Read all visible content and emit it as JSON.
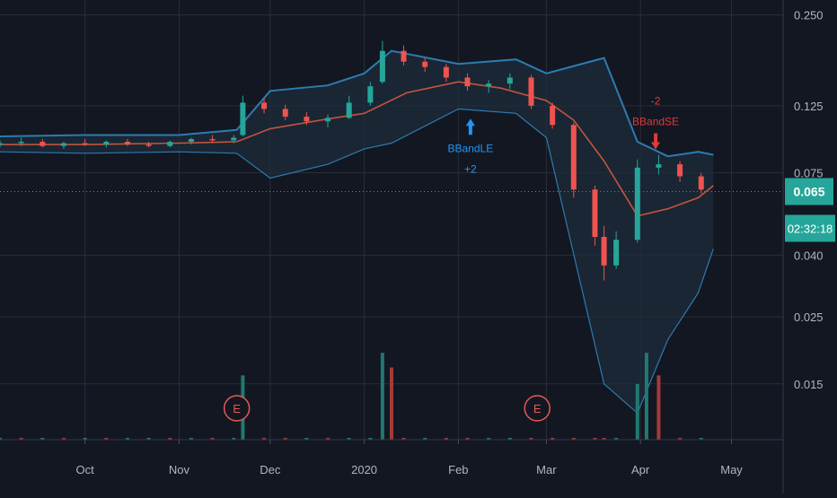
{
  "chart_data": {
    "type": "candlestick",
    "y_scale": "log",
    "y_ticks": [
      "0.250",
      "0.125",
      "0.075",
      "0.040",
      "0.025",
      "0.015"
    ],
    "y_tick_values": [
      0.25,
      0.125,
      0.075,
      0.04,
      0.025,
      0.015
    ],
    "y_range": [
      0.0098,
      0.28
    ],
    "x_ticks": [
      "Oct",
      "Nov",
      "Dec",
      "2020",
      "Feb",
      "Mar",
      "Apr",
      "May"
    ],
    "x_tick_dates": [
      "2019-10-01",
      "2019-11-01",
      "2019-12-01",
      "2020-01-01",
      "2020-02-01",
      "2020-03-01",
      "2020-04-01",
      "2020-05-01"
    ],
    "x_range": [
      "2019-09-03",
      "2020-05-18"
    ],
    "last_price": {
      "label": "0.065",
      "value": 0.065
    },
    "countdown": "02:32:18",
    "bb_middle": [
      [
        "2019-09-03",
        0.093
      ],
      [
        "2019-10-01",
        0.093
      ],
      [
        "2019-11-01",
        0.094
      ],
      [
        "2019-11-20",
        0.095
      ],
      [
        "2019-12-01",
        0.105
      ],
      [
        "2019-12-20",
        0.113
      ],
      [
        "2020-01-01",
        0.118
      ],
      [
        "2020-01-15",
        0.138
      ],
      [
        "2020-02-01",
        0.15
      ],
      [
        "2020-02-15",
        0.143
      ],
      [
        "2020-03-01",
        0.13
      ],
      [
        "2020-03-10",
        0.112
      ],
      [
        "2020-03-20",
        0.082
      ],
      [
        "2020-03-31",
        0.054
      ],
      [
        "2020-04-10",
        0.057
      ],
      [
        "2020-04-20",
        0.062
      ],
      [
        "2020-04-25",
        0.068
      ]
    ],
    "bb_upper": [
      [
        "2019-09-03",
        0.099
      ],
      [
        "2019-10-01",
        0.1
      ],
      [
        "2019-11-01",
        0.1
      ],
      [
        "2019-11-20",
        0.104
      ],
      [
        "2019-12-01",
        0.14
      ],
      [
        "2019-12-20",
        0.146
      ],
      [
        "2020-01-01",
        0.16
      ],
      [
        "2020-01-10",
        0.19
      ],
      [
        "2020-02-01",
        0.172
      ],
      [
        "2020-02-20",
        0.178
      ],
      [
        "2020-03-01",
        0.16
      ],
      [
        "2020-03-20",
        0.18
      ],
      [
        "2020-03-31",
        0.095
      ],
      [
        "2020-04-10",
        0.085
      ],
      [
        "2020-04-20",
        0.088
      ],
      [
        "2020-04-25",
        0.086
      ]
    ],
    "bb_lower": [
      [
        "2019-09-03",
        0.088
      ],
      [
        "2019-10-01",
        0.087
      ],
      [
        "2019-11-01",
        0.088
      ],
      [
        "2019-11-20",
        0.087
      ],
      [
        "2019-12-01",
        0.072
      ],
      [
        "2019-12-20",
        0.08
      ],
      [
        "2020-01-01",
        0.09
      ],
      [
        "2020-01-10",
        0.094
      ],
      [
        "2020-02-01",
        0.122
      ],
      [
        "2020-02-20",
        0.118
      ],
      [
        "2020-03-01",
        0.098
      ],
      [
        "2020-03-20",
        0.015
      ],
      [
        "2020-03-31",
        0.012
      ],
      [
        "2020-04-10",
        0.021
      ],
      [
        "2020-04-20",
        0.03
      ],
      [
        "2020-04-25",
        0.042
      ]
    ],
    "candles": [
      [
        "2019-09-03",
        0.093,
        0.096,
        0.091,
        0.094
      ],
      [
        "2019-09-10",
        0.094,
        0.098,
        0.092,
        0.095
      ],
      [
        "2019-09-17",
        0.095,
        0.097,
        0.091,
        0.092
      ],
      [
        "2019-09-24",
        0.092,
        0.095,
        0.09,
        0.094
      ],
      [
        "2019-10-01",
        0.094,
        0.097,
        0.092,
        0.093
      ],
      [
        "2019-10-08",
        0.093,
        0.096,
        0.091,
        0.095
      ],
      [
        "2019-10-15",
        0.095,
        0.097,
        0.092,
        0.093
      ],
      [
        "2019-10-22",
        0.093,
        0.095,
        0.091,
        0.092
      ],
      [
        "2019-10-29",
        0.092,
        0.096,
        0.091,
        0.095
      ],
      [
        "2019-11-05",
        0.095,
        0.098,
        0.093,
        0.097
      ],
      [
        "2019-11-12",
        0.097,
        0.1,
        0.094,
        0.096
      ],
      [
        "2019-11-19",
        0.096,
        0.1,
        0.094,
        0.098
      ],
      [
        "2019-11-22",
        0.1,
        0.135,
        0.099,
        0.128
      ],
      [
        "2019-11-29",
        0.128,
        0.133,
        0.118,
        0.122
      ],
      [
        "2019-12-06",
        0.122,
        0.126,
        0.112,
        0.115
      ],
      [
        "2019-12-13",
        0.115,
        0.119,
        0.108,
        0.111
      ],
      [
        "2019-12-20",
        0.111,
        0.117,
        0.106,
        0.114
      ],
      [
        "2019-12-27",
        0.114,
        0.135,
        0.113,
        0.128
      ],
      [
        "2020-01-03",
        0.128,
        0.15,
        0.125,
        0.145
      ],
      [
        "2020-01-07",
        0.15,
        0.205,
        0.148,
        0.19
      ],
      [
        "2020-01-14",
        0.19,
        0.198,
        0.17,
        0.175
      ],
      [
        "2020-01-21",
        0.175,
        0.18,
        0.162,
        0.168
      ],
      [
        "2020-01-28",
        0.168,
        0.172,
        0.15,
        0.155
      ],
      [
        "2020-02-04",
        0.155,
        0.16,
        0.14,
        0.145
      ],
      [
        "2020-02-11",
        0.145,
        0.152,
        0.138,
        0.148
      ],
      [
        "2020-02-18",
        0.148,
        0.16,
        0.142,
        0.155
      ],
      [
        "2020-02-25",
        0.155,
        0.158,
        0.122,
        0.125
      ],
      [
        "2020-03-03",
        0.125,
        0.128,
        0.105,
        0.108
      ],
      [
        "2020-03-10",
        0.108,
        0.11,
        0.062,
        0.066
      ],
      [
        "2020-03-17",
        0.066,
        0.068,
        0.043,
        0.046
      ],
      [
        "2020-03-20",
        0.046,
        0.05,
        0.033,
        0.037
      ],
      [
        "2020-03-24",
        0.037,
        0.048,
        0.036,
        0.045
      ],
      [
        "2020-03-31",
        0.045,
        0.083,
        0.044,
        0.078
      ],
      [
        "2020-04-07",
        0.078,
        0.086,
        0.074,
        0.08
      ],
      [
        "2020-04-14",
        0.08,
        0.082,
        0.07,
        0.073
      ],
      [
        "2020-04-21",
        0.073,
        0.075,
        0.064,
        0.066
      ]
    ],
    "volume": [
      [
        "2019-09-03",
        0.0015,
        "up"
      ],
      [
        "2019-09-10",
        0.002,
        "down"
      ],
      [
        "2019-09-17",
        0.0015,
        "up"
      ],
      [
        "2019-09-24",
        0.001,
        "down"
      ],
      [
        "2019-10-01",
        0.0015,
        "up"
      ],
      [
        "2019-10-08",
        0.001,
        "down"
      ],
      [
        "2019-10-15",
        0.0015,
        "up"
      ],
      [
        "2019-10-22",
        0.001,
        "up"
      ],
      [
        "2019-10-29",
        0.002,
        "down"
      ],
      [
        "2019-11-05",
        0.0015,
        "up"
      ],
      [
        "2019-11-12",
        0.002,
        "down"
      ],
      [
        "2019-11-19",
        0.003,
        "up"
      ],
      [
        "2019-11-22",
        0.016,
        "up"
      ],
      [
        "2019-11-29",
        0.007,
        "down"
      ],
      [
        "2019-12-06",
        0.005,
        "down"
      ],
      [
        "2019-12-13",
        0.003,
        "up"
      ],
      [
        "2019-12-20",
        0.004,
        "down"
      ],
      [
        "2019-12-27",
        0.005,
        "up"
      ],
      [
        "2020-01-03",
        0.008,
        "up"
      ],
      [
        "2020-01-07",
        0.019,
        "up"
      ],
      [
        "2020-01-10",
        0.017,
        "down"
      ],
      [
        "2020-01-14",
        0.008,
        "down"
      ],
      [
        "2020-01-21",
        0.009,
        "up"
      ],
      [
        "2020-01-28",
        0.006,
        "down"
      ],
      [
        "2020-02-04",
        0.007,
        "down"
      ],
      [
        "2020-02-11",
        0.005,
        "up"
      ],
      [
        "2020-02-18",
        0.006,
        "up"
      ],
      [
        "2020-02-25",
        0.006,
        "down"
      ],
      [
        "2020-03-03",
        0.007,
        "down"
      ],
      [
        "2020-03-10",
        0.009,
        "down"
      ],
      [
        "2020-03-17",
        0.007,
        "down"
      ],
      [
        "2020-03-20",
        0.006,
        "down"
      ],
      [
        "2020-03-24",
        0.006,
        "up"
      ],
      [
        "2020-03-31",
        0.015,
        "up"
      ],
      [
        "2020-04-03",
        0.019,
        "up"
      ],
      [
        "2020-04-07",
        0.016,
        "down"
      ],
      [
        "2020-04-14",
        0.006,
        "down"
      ],
      [
        "2020-04-21",
        0.005,
        "up"
      ]
    ],
    "earnings_markers": [
      {
        "label": "E",
        "date": "2019-11-20"
      },
      {
        "label": "E",
        "date": "2020-02-27"
      }
    ],
    "signals": [
      {
        "name": "BBandLE",
        "qty": "+2",
        "date": "2020-02-05",
        "price": 0.118,
        "direction": "buy"
      },
      {
        "name": "BBandSE",
        "qty": "-2",
        "date": "2020-04-06",
        "price": 0.086,
        "direction": "sell"
      }
    ],
    "grid": true,
    "colors": {
      "background": "#131722",
      "grid": "#2a2e39",
      "up": "#26a69a",
      "down": "#ef5350",
      "vol_up": "#1f7a72",
      "vol_down": "#a33b39",
      "bb_band": "#2d7bb0",
      "bb_fill": "#1d2c3a",
      "bb_middle": "#c0553f",
      "buy_signal": "#2196f3",
      "sell_signal": "#e03a3a",
      "price_line": "#26a69a",
      "axis_text": "#b2b5be",
      "badge": "#26a69a",
      "earnings": "#e55a55"
    }
  }
}
